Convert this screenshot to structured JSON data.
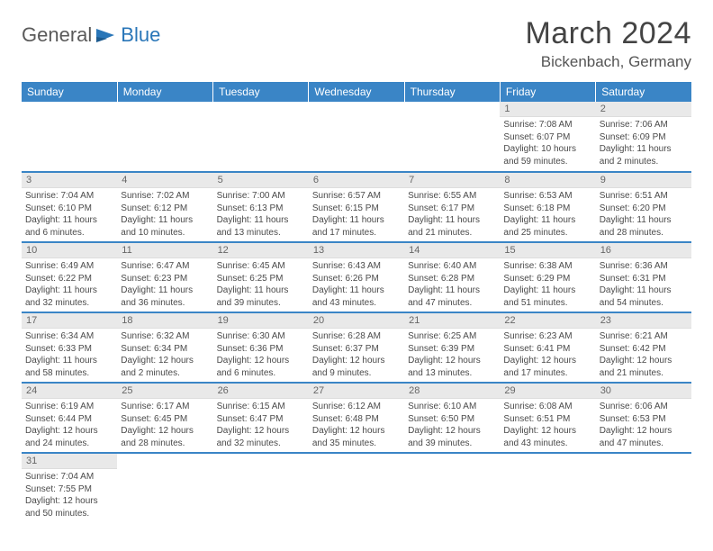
{
  "logo": {
    "general": "General",
    "blue": "Blue"
  },
  "title": "March 2024",
  "location": "Bickenbach, Germany",
  "colors": {
    "header_bg": "#3a85c6",
    "header_fg": "#ffffff",
    "daynum_bg": "#e9e9e9",
    "row_border": "#3a85c6",
    "title_color": "#444444",
    "logo_blue": "#2976b8"
  },
  "day_headers": [
    "Sunday",
    "Monday",
    "Tuesday",
    "Wednesday",
    "Thursday",
    "Friday",
    "Saturday"
  ],
  "weeks": [
    [
      null,
      null,
      null,
      null,
      null,
      {
        "n": "1",
        "sr": "Sunrise: 7:08 AM",
        "ss": "Sunset: 6:07 PM",
        "dl1": "Daylight: 10 hours",
        "dl2": "and 59 minutes."
      },
      {
        "n": "2",
        "sr": "Sunrise: 7:06 AM",
        "ss": "Sunset: 6:09 PM",
        "dl1": "Daylight: 11 hours",
        "dl2": "and 2 minutes."
      }
    ],
    [
      {
        "n": "3",
        "sr": "Sunrise: 7:04 AM",
        "ss": "Sunset: 6:10 PM",
        "dl1": "Daylight: 11 hours",
        "dl2": "and 6 minutes."
      },
      {
        "n": "4",
        "sr": "Sunrise: 7:02 AM",
        "ss": "Sunset: 6:12 PM",
        "dl1": "Daylight: 11 hours",
        "dl2": "and 10 minutes."
      },
      {
        "n": "5",
        "sr": "Sunrise: 7:00 AM",
        "ss": "Sunset: 6:13 PM",
        "dl1": "Daylight: 11 hours",
        "dl2": "and 13 minutes."
      },
      {
        "n": "6",
        "sr": "Sunrise: 6:57 AM",
        "ss": "Sunset: 6:15 PM",
        "dl1": "Daylight: 11 hours",
        "dl2": "and 17 minutes."
      },
      {
        "n": "7",
        "sr": "Sunrise: 6:55 AM",
        "ss": "Sunset: 6:17 PM",
        "dl1": "Daylight: 11 hours",
        "dl2": "and 21 minutes."
      },
      {
        "n": "8",
        "sr": "Sunrise: 6:53 AM",
        "ss": "Sunset: 6:18 PM",
        "dl1": "Daylight: 11 hours",
        "dl2": "and 25 minutes."
      },
      {
        "n": "9",
        "sr": "Sunrise: 6:51 AM",
        "ss": "Sunset: 6:20 PM",
        "dl1": "Daylight: 11 hours",
        "dl2": "and 28 minutes."
      }
    ],
    [
      {
        "n": "10",
        "sr": "Sunrise: 6:49 AM",
        "ss": "Sunset: 6:22 PM",
        "dl1": "Daylight: 11 hours",
        "dl2": "and 32 minutes."
      },
      {
        "n": "11",
        "sr": "Sunrise: 6:47 AM",
        "ss": "Sunset: 6:23 PM",
        "dl1": "Daylight: 11 hours",
        "dl2": "and 36 minutes."
      },
      {
        "n": "12",
        "sr": "Sunrise: 6:45 AM",
        "ss": "Sunset: 6:25 PM",
        "dl1": "Daylight: 11 hours",
        "dl2": "and 39 minutes."
      },
      {
        "n": "13",
        "sr": "Sunrise: 6:43 AM",
        "ss": "Sunset: 6:26 PM",
        "dl1": "Daylight: 11 hours",
        "dl2": "and 43 minutes."
      },
      {
        "n": "14",
        "sr": "Sunrise: 6:40 AM",
        "ss": "Sunset: 6:28 PM",
        "dl1": "Daylight: 11 hours",
        "dl2": "and 47 minutes."
      },
      {
        "n": "15",
        "sr": "Sunrise: 6:38 AM",
        "ss": "Sunset: 6:29 PM",
        "dl1": "Daylight: 11 hours",
        "dl2": "and 51 minutes."
      },
      {
        "n": "16",
        "sr": "Sunrise: 6:36 AM",
        "ss": "Sunset: 6:31 PM",
        "dl1": "Daylight: 11 hours",
        "dl2": "and 54 minutes."
      }
    ],
    [
      {
        "n": "17",
        "sr": "Sunrise: 6:34 AM",
        "ss": "Sunset: 6:33 PM",
        "dl1": "Daylight: 11 hours",
        "dl2": "and 58 minutes."
      },
      {
        "n": "18",
        "sr": "Sunrise: 6:32 AM",
        "ss": "Sunset: 6:34 PM",
        "dl1": "Daylight: 12 hours",
        "dl2": "and 2 minutes."
      },
      {
        "n": "19",
        "sr": "Sunrise: 6:30 AM",
        "ss": "Sunset: 6:36 PM",
        "dl1": "Daylight: 12 hours",
        "dl2": "and 6 minutes."
      },
      {
        "n": "20",
        "sr": "Sunrise: 6:28 AM",
        "ss": "Sunset: 6:37 PM",
        "dl1": "Daylight: 12 hours",
        "dl2": "and 9 minutes."
      },
      {
        "n": "21",
        "sr": "Sunrise: 6:25 AM",
        "ss": "Sunset: 6:39 PM",
        "dl1": "Daylight: 12 hours",
        "dl2": "and 13 minutes."
      },
      {
        "n": "22",
        "sr": "Sunrise: 6:23 AM",
        "ss": "Sunset: 6:41 PM",
        "dl1": "Daylight: 12 hours",
        "dl2": "and 17 minutes."
      },
      {
        "n": "23",
        "sr": "Sunrise: 6:21 AM",
        "ss": "Sunset: 6:42 PM",
        "dl1": "Daylight: 12 hours",
        "dl2": "and 21 minutes."
      }
    ],
    [
      {
        "n": "24",
        "sr": "Sunrise: 6:19 AM",
        "ss": "Sunset: 6:44 PM",
        "dl1": "Daylight: 12 hours",
        "dl2": "and 24 minutes."
      },
      {
        "n": "25",
        "sr": "Sunrise: 6:17 AM",
        "ss": "Sunset: 6:45 PM",
        "dl1": "Daylight: 12 hours",
        "dl2": "and 28 minutes."
      },
      {
        "n": "26",
        "sr": "Sunrise: 6:15 AM",
        "ss": "Sunset: 6:47 PM",
        "dl1": "Daylight: 12 hours",
        "dl2": "and 32 minutes."
      },
      {
        "n": "27",
        "sr": "Sunrise: 6:12 AM",
        "ss": "Sunset: 6:48 PM",
        "dl1": "Daylight: 12 hours",
        "dl2": "and 35 minutes."
      },
      {
        "n": "28",
        "sr": "Sunrise: 6:10 AM",
        "ss": "Sunset: 6:50 PM",
        "dl1": "Daylight: 12 hours",
        "dl2": "and 39 minutes."
      },
      {
        "n": "29",
        "sr": "Sunrise: 6:08 AM",
        "ss": "Sunset: 6:51 PM",
        "dl1": "Daylight: 12 hours",
        "dl2": "and 43 minutes."
      },
      {
        "n": "30",
        "sr": "Sunrise: 6:06 AM",
        "ss": "Sunset: 6:53 PM",
        "dl1": "Daylight: 12 hours",
        "dl2": "and 47 minutes."
      }
    ],
    [
      {
        "n": "31",
        "sr": "Sunrise: 7:04 AM",
        "ss": "Sunset: 7:55 PM",
        "dl1": "Daylight: 12 hours",
        "dl2": "and 50 minutes."
      },
      null,
      null,
      null,
      null,
      null,
      null
    ]
  ]
}
